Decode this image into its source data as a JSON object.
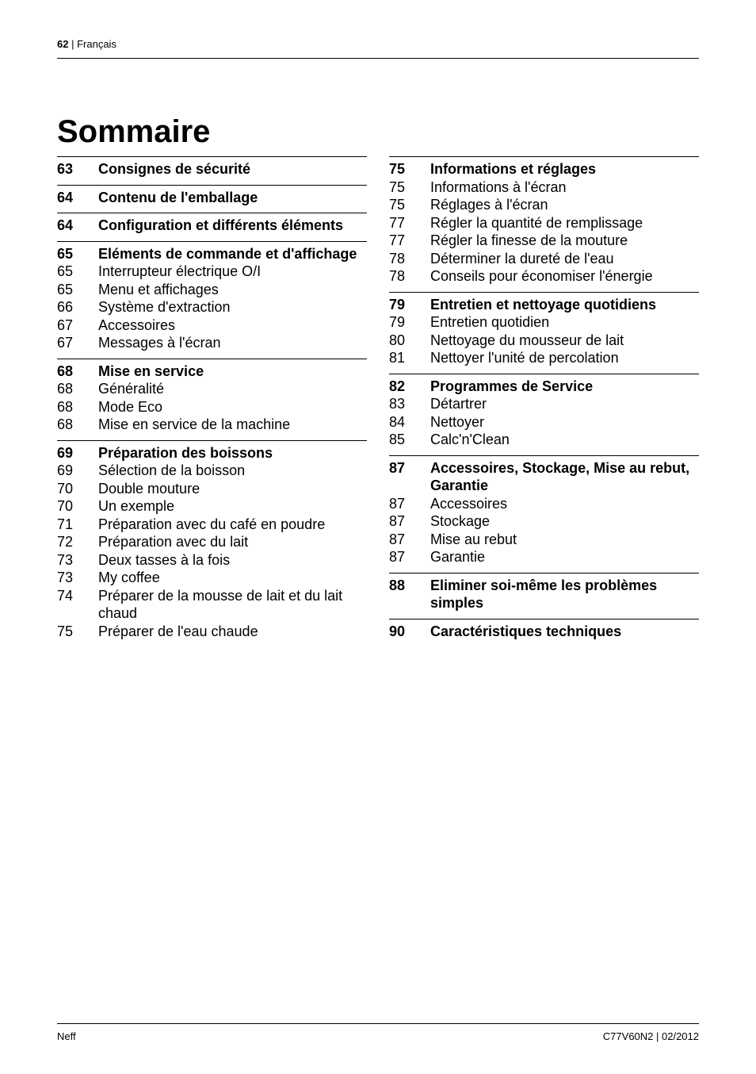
{
  "header": {
    "page_number": "62",
    "language": "Français"
  },
  "title": "Sommaire",
  "left_column": [
    {
      "heading": {
        "page": "63",
        "label": "Consignes de sécurité"
      },
      "items": []
    },
    {
      "heading": {
        "page": "64",
        "label": "Contenu de l'emballage"
      },
      "items": []
    },
    {
      "heading": {
        "page": "64",
        "label": "Configuration et différents éléments"
      },
      "items": []
    },
    {
      "heading": {
        "page": "65",
        "label": "Eléments de commande et d'affichage"
      },
      "items": [
        {
          "page": "65",
          "label": "Interrupteur électrique O/I"
        },
        {
          "page": "65",
          "label": "Menu et affichages"
        },
        {
          "page": "66",
          "label": "Système d'extraction"
        },
        {
          "page": "67",
          "label": "Accessoires"
        },
        {
          "page": "67",
          "label": "Messages à l'écran"
        }
      ]
    },
    {
      "heading": {
        "page": "68",
        "label": "Mise en service"
      },
      "items": [
        {
          "page": "68",
          "label": "Généralité"
        },
        {
          "page": "68",
          "label": "Mode Eco"
        },
        {
          "page": "68",
          "label": "Mise en service de la machine"
        }
      ]
    },
    {
      "heading": {
        "page": "69",
        "label": "Préparation des boissons"
      },
      "items": [
        {
          "page": "69",
          "label": "Sélection de la boisson"
        },
        {
          "page": "70",
          "label": "Double mouture"
        },
        {
          "page": "70",
          "label": "Un exemple"
        },
        {
          "page": "71",
          "label": "Préparation avec du café en poudre"
        },
        {
          "page": "72",
          "label": "Préparation avec du lait"
        },
        {
          "page": "73",
          "label": "Deux tasses à la fois"
        },
        {
          "page": "73",
          "label": "My coffee"
        },
        {
          "page": "74",
          "label": "Préparer de la mousse de lait et du lait chaud"
        },
        {
          "page": "75",
          "label": "Préparer de l'eau chaude"
        }
      ]
    }
  ],
  "right_column": [
    {
      "heading": {
        "page": "75",
        "label": "Informations et réglages"
      },
      "items": [
        {
          "page": "75",
          "label": "Informations à l'écran"
        },
        {
          "page": "75",
          "label": "Réglages à l'écran"
        },
        {
          "page": "77",
          "label": "Régler la quantité de remplissage"
        },
        {
          "page": "77",
          "label": "Régler la finesse de la mouture"
        },
        {
          "page": "78",
          "label": "Déterminer la dureté de l'eau"
        },
        {
          "page": "78",
          "label": "Conseils pour économiser l'énergie"
        }
      ]
    },
    {
      "heading": {
        "page": "79",
        "label": "Entretien et nettoyage quotidiens"
      },
      "items": [
        {
          "page": "79",
          "label": "Entretien quotidien"
        },
        {
          "page": "80",
          "label": "Nettoyage du mousseur de lait"
        },
        {
          "page": "81",
          "label": "Nettoyer l'unité de percolation"
        }
      ]
    },
    {
      "heading": {
        "page": "82",
        "label": "Programmes de Service"
      },
      "items": [
        {
          "page": "83",
          "label": "Détartrer"
        },
        {
          "page": "84",
          "label": "Nettoyer"
        },
        {
          "page": "85",
          "label": "Calc'n'Clean"
        }
      ]
    },
    {
      "heading": {
        "page": "87",
        "label": "Accessoires, Stockage, Mise au rebut, Garantie"
      },
      "items": [
        {
          "page": "87",
          "label": "Accessoires"
        },
        {
          "page": "87",
          "label": "Stockage"
        },
        {
          "page": "87",
          "label": "Mise au rebut"
        },
        {
          "page": "87",
          "label": "Garantie"
        }
      ]
    },
    {
      "heading": {
        "page": "88",
        "label": "Eliminer soi-même les problèmes simples"
      },
      "items": []
    },
    {
      "heading": {
        "page": "90",
        "label": "Caractéristiques techniques"
      },
      "items": []
    }
  ],
  "footer": {
    "left": "Neff",
    "right": "C77V60N2 | 02/2012"
  }
}
